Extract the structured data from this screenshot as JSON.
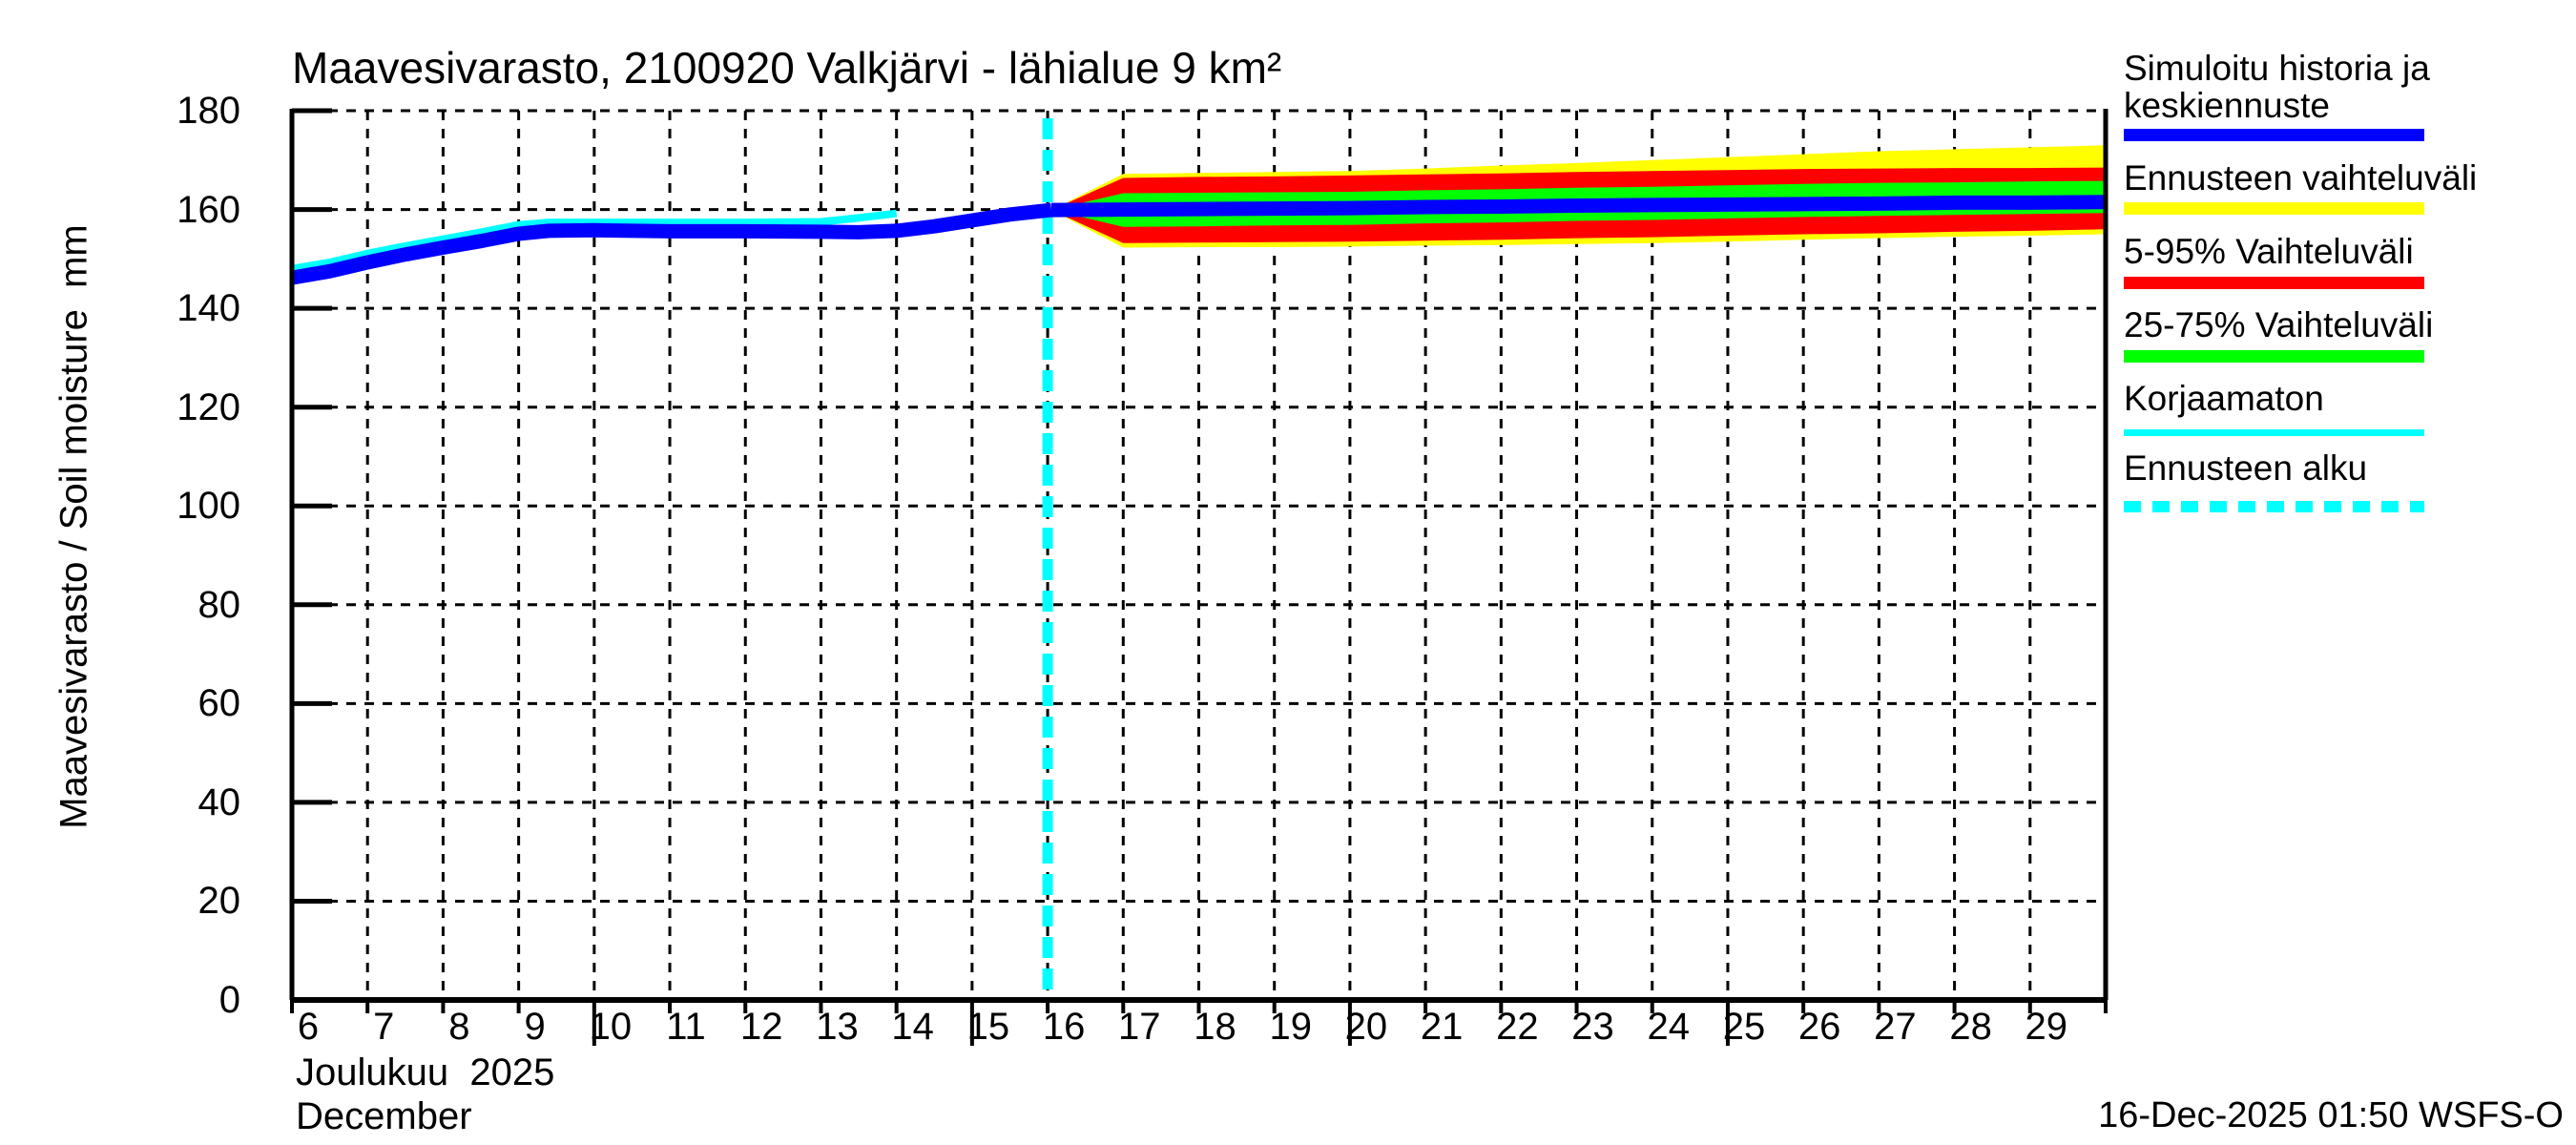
{
  "title": "Maavesivarasto, 2100920 Valkjärvi - lähialue 9 km²",
  "y_axis": {
    "label": "Maavesivarasto / Soil moisture  mm",
    "ticks": [
      0,
      20,
      40,
      60,
      80,
      100,
      120,
      140,
      160,
      180
    ]
  },
  "x_axis": {
    "month_line1": "Joulukuu  2025",
    "month_line2": "December",
    "day_labels": [
      6,
      7,
      8,
      9,
      10,
      11,
      12,
      13,
      14,
      15,
      16,
      17,
      18,
      19,
      20,
      21,
      22,
      23,
      24,
      25,
      26,
      27,
      28,
      29
    ],
    "long_tick_days": [
      10,
      15,
      20,
      25
    ]
  },
  "footer": {
    "timestamp": "16-Dec-2025 01:50 WSFS-O"
  },
  "colors": {
    "history_median": "#0000ff",
    "uncorrected": "#00ffff",
    "forecast_range": "#ffff00",
    "range_5_95": "#ff0000",
    "range_25_75": "#00ff00",
    "forecast_start": "#00ffff",
    "grid": "#000000"
  },
  "legend": {
    "items": [
      {
        "label": "Simuloitu historia ja\nkeskiennuste",
        "color": "#0000ff",
        "thickness": 13,
        "dashed": false
      },
      {
        "label": "Ennusteen vaihteluväli",
        "color": "#ffff00",
        "thickness": 13,
        "dashed": false
      },
      {
        "label": "5-95% Vaihteluväli",
        "color": "#ff0000",
        "thickness": 13,
        "dashed": false
      },
      {
        "label": "25-75% Vaihteluväli",
        "color": "#00ff00",
        "thickness": 13,
        "dashed": false
      },
      {
        "label": "Korjaamaton",
        "color": "#00ffff",
        "thickness": 7,
        "dashed": false
      },
      {
        "label": "Ennusteen alku",
        "color": "#00ffff",
        "thickness": 12,
        "dashed": true
      }
    ]
  },
  "chart_data": {
    "type": "line",
    "title": "Maavesivarasto, 2100920 Valkjärvi - lähialue 9 km²",
    "xlabel": "Joulukuu 2025 / December (day of month)",
    "ylabel": "Maavesivarasto / Soil moisture  mm",
    "ylim": [
      0,
      182
    ],
    "xlim": [
      6,
      30
    ],
    "grid": "dashed",
    "legend_position": "right",
    "forecast_start_day": 16,
    "series": [
      {
        "name": "Simuloitu historia ja keskiennuste (history)",
        "color": "#0000ff",
        "points": [
          [
            6,
            146.2
          ],
          [
            6.5,
            147.5
          ],
          [
            7,
            149.3
          ],
          [
            7.5,
            150.9
          ],
          [
            8,
            152.3
          ],
          [
            8.5,
            153.6
          ],
          [
            9,
            155.1
          ],
          [
            9.4,
            155.7
          ],
          [
            10,
            155.8
          ],
          [
            11,
            155.6
          ],
          [
            12,
            155.6
          ],
          [
            13,
            155.5
          ],
          [
            13.5,
            155.4
          ],
          [
            14,
            155.7
          ],
          [
            14.5,
            156.6
          ],
          [
            15,
            157.8
          ],
          [
            15.5,
            159.0
          ],
          [
            16.05,
            159.9
          ]
        ]
      },
      {
        "name": "Korjaamaton (uncorrected)",
        "color": "#00ffff",
        "points": [
          [
            6,
            148.0
          ],
          [
            6.5,
            149.3
          ],
          [
            7,
            151.1
          ],
          [
            7.5,
            152.6
          ],
          [
            8,
            154.0
          ],
          [
            8.5,
            155.4
          ],
          [
            9,
            156.9
          ],
          [
            9.4,
            157.4
          ],
          [
            10,
            157.4
          ],
          [
            11,
            157.4
          ],
          [
            12,
            157.4
          ],
          [
            13,
            157.5
          ],
          [
            13.5,
            158.3
          ],
          [
            14,
            159.2
          ]
        ]
      },
      {
        "name": "Keskiennuste (forecast median)",
        "color": "#0000ff",
        "points": [
          [
            16.05,
            159.9
          ],
          [
            17,
            160.0
          ],
          [
            18,
            160.1
          ],
          [
            19,
            160.2
          ],
          [
            20,
            160.3
          ],
          [
            21,
            160.5
          ],
          [
            22,
            160.6
          ],
          [
            23,
            160.8
          ],
          [
            24,
            160.9
          ],
          [
            25,
            161.0
          ],
          [
            26,
            161.1
          ],
          [
            27,
            161.2
          ],
          [
            28,
            161.4
          ],
          [
            29,
            161.4
          ],
          [
            30,
            161.5
          ]
        ]
      }
    ],
    "bands": [
      {
        "name": "Ennusteen vaihteluväli (full forecast range)",
        "color": "#ffff00",
        "points_day_lo_hi": [
          [
            16.05,
            159.9,
            159.9
          ],
          [
            17,
            152.3,
            167.2
          ],
          [
            18,
            152.4,
            167.4
          ],
          [
            19,
            152.4,
            167.6
          ],
          [
            20,
            152.5,
            167.8
          ],
          [
            21,
            152.7,
            168.3
          ],
          [
            22,
            152.8,
            168.9
          ],
          [
            23,
            153.0,
            169.4
          ],
          [
            24,
            153.2,
            170.0
          ],
          [
            25,
            153.5,
            170.6
          ],
          [
            26,
            153.9,
            171.2
          ],
          [
            27,
            154.2,
            171.8
          ],
          [
            28,
            154.5,
            172.2
          ],
          [
            29,
            154.7,
            172.6
          ],
          [
            30,
            155.0,
            173.0
          ]
        ]
      },
      {
        "name": "5-95% Vaihteluväli",
        "color": "#ff0000",
        "points_day_lo_hi": [
          [
            16.05,
            159.9,
            159.9
          ],
          [
            17,
            153.2,
            166.4
          ],
          [
            18,
            153.3,
            166.6
          ],
          [
            19,
            153.4,
            166.7
          ],
          [
            20,
            153.5,
            166.9
          ],
          [
            21,
            153.7,
            167.1
          ],
          [
            22,
            153.9,
            167.3
          ],
          [
            23,
            154.2,
            167.6
          ],
          [
            24,
            154.4,
            167.8
          ],
          [
            25,
            154.7,
            168.0
          ],
          [
            26,
            155.0,
            168.2
          ],
          [
            27,
            155.2,
            168.3
          ],
          [
            28,
            155.5,
            168.4
          ],
          [
            29,
            155.7,
            168.4
          ],
          [
            30,
            156.0,
            168.5
          ]
        ]
      },
      {
        "name": "25-75% Vaihteluväli",
        "color": "#00ff00",
        "points_day_lo_hi": [
          [
            16.05,
            159.9,
            159.9
          ],
          [
            17,
            156.5,
            163.3
          ],
          [
            18,
            156.6,
            163.4
          ],
          [
            19,
            156.8,
            163.5
          ],
          [
            20,
            156.9,
            163.6
          ],
          [
            21,
            157.2,
            163.9
          ],
          [
            22,
            157.4,
            164.1
          ],
          [
            23,
            157.7,
            164.4
          ],
          [
            24,
            157.9,
            164.6
          ],
          [
            25,
            158.2,
            164.9
          ],
          [
            26,
            158.5,
            165.2
          ],
          [
            27,
            158.7,
            165.4
          ],
          [
            28,
            158.9,
            165.5
          ],
          [
            29,
            159.1,
            165.7
          ],
          [
            30,
            159.3,
            165.8
          ]
        ]
      }
    ],
    "annotations": [
      {
        "name": "Ennusteen alku (forecast start)",
        "type": "vline",
        "x": 16,
        "color": "#00ffff",
        "style": "dashed"
      }
    ]
  }
}
